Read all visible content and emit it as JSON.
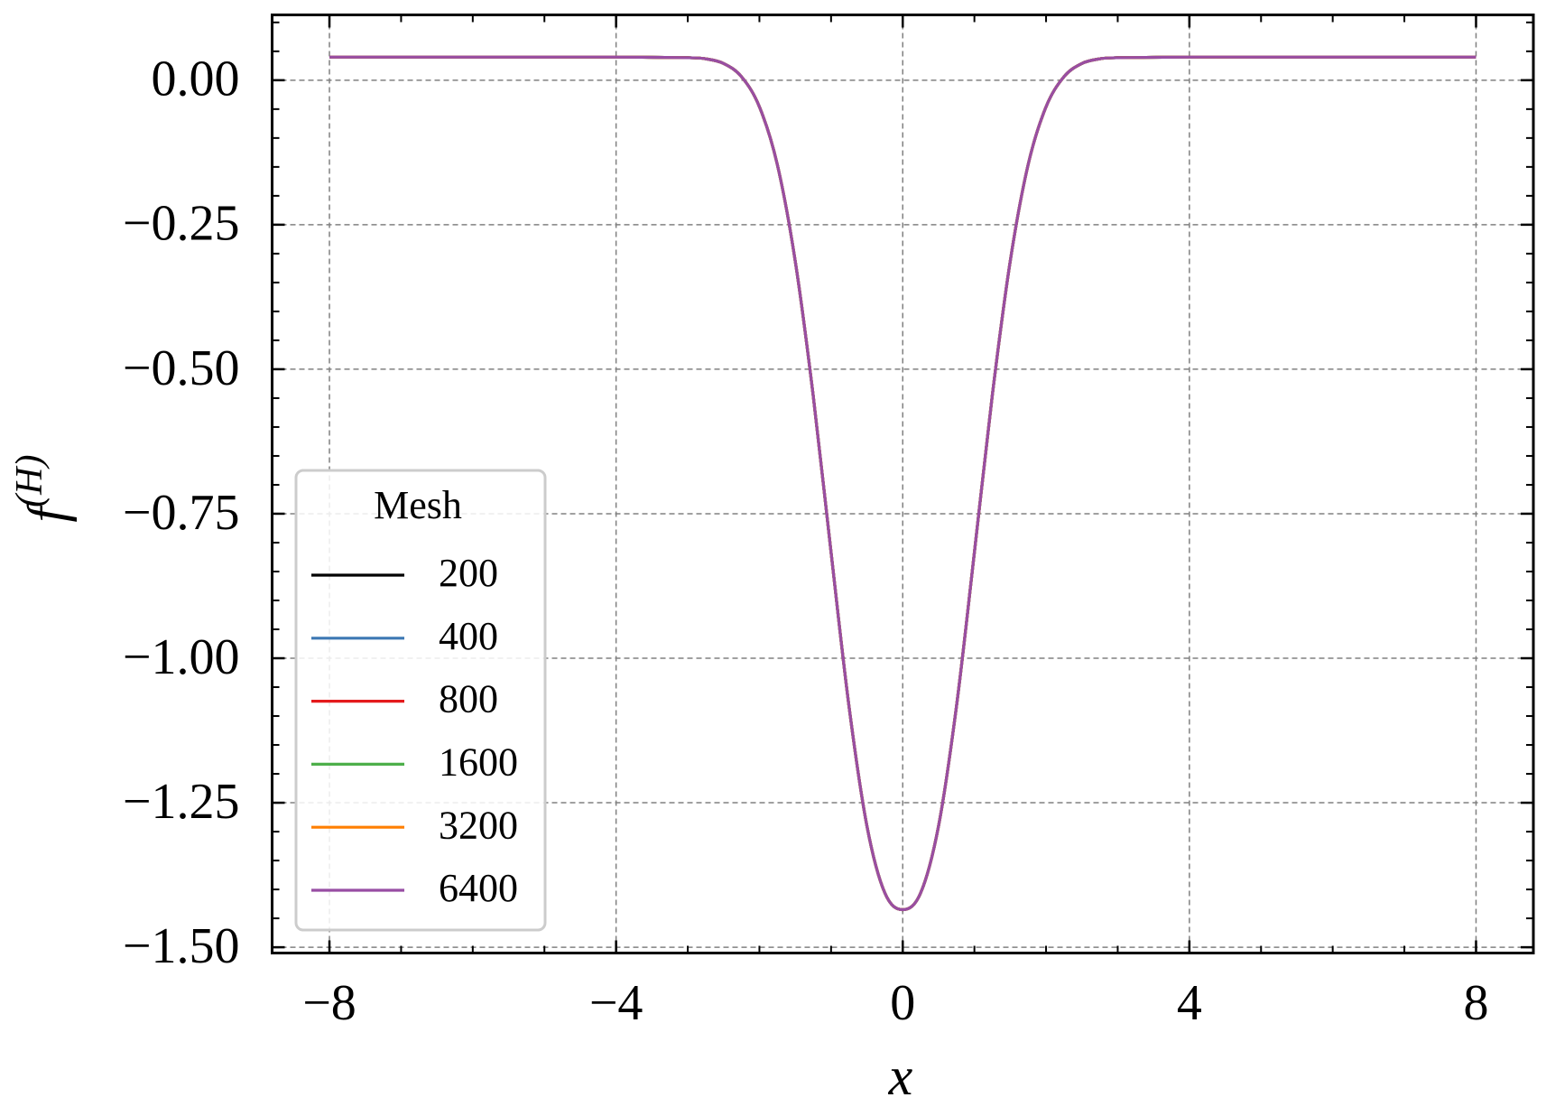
{
  "chart_data": {
    "type": "line",
    "xlabel": "x",
    "ylabel": {
      "base": "f",
      "sup": "(H)"
    },
    "legend_title": "Mesh",
    "legend": "lower left",
    "grid": true,
    "xlim": [
      -8.8,
      8.8
    ],
    "ylim": [
      -1.51,
      0.113
    ],
    "xticks": [
      {
        "value": -8,
        "label": "−8"
      },
      {
        "value": -4,
        "label": "−4"
      },
      0,
      4,
      8
    ],
    "yticks": [
      {
        "value": 0,
        "label": "0.00"
      },
      {
        "value": -0.25,
        "label": "−0.25"
      },
      {
        "value": -0.5,
        "label": "−0.50"
      },
      {
        "value": -0.75,
        "label": "−0.75"
      },
      {
        "value": -1,
        "label": "−1.00"
      },
      {
        "value": -1.25,
        "label": "−1.25"
      },
      {
        "value": -1.5,
        "label": "−1.50"
      }
    ],
    "xminor_step": 1,
    "yminor_step": 0.05,
    "x": [
      -8,
      -7,
      -6,
      -5,
      -4,
      -3,
      -2.75,
      -2.5,
      -2.25,
      -2,
      -1.75,
      -1.5,
      -1.25,
      -1,
      -0.75,
      -0.5,
      -0.25,
      0,
      0.25,
      0.5,
      0.75,
      1,
      1.25,
      1.5,
      1.75,
      2,
      2.25,
      2.5,
      2.75,
      3,
      4,
      5,
      6,
      7,
      8
    ],
    "series": [
      {
        "name": "200",
        "color": "#000000",
        "values": [
          0.04,
          0.04,
          0.04,
          0.04,
          0.04,
          0.039,
          0.037,
          0.029,
          0.006,
          -0.046,
          -0.146,
          -0.313,
          -0.545,
          -0.817,
          -1.083,
          -1.29,
          -1.406,
          -1.435,
          -1.406,
          -1.29,
          -1.083,
          -0.817,
          -0.545,
          -0.313,
          -0.146,
          -0.046,
          0.006,
          0.029,
          0.037,
          0.039,
          0.04,
          0.04,
          0.04,
          0.04,
          0.04
        ]
      },
      {
        "name": "400",
        "color": "#3d78b4",
        "values": [
          0.04,
          0.04,
          0.04,
          0.04,
          0.04,
          0.039,
          0.037,
          0.029,
          0.006,
          -0.046,
          -0.146,
          -0.313,
          -0.545,
          -0.817,
          -1.083,
          -1.29,
          -1.406,
          -1.435,
          -1.406,
          -1.29,
          -1.083,
          -0.817,
          -0.545,
          -0.313,
          -0.146,
          -0.046,
          0.006,
          0.029,
          0.037,
          0.039,
          0.04,
          0.04,
          0.04,
          0.04,
          0.04
        ]
      },
      {
        "name": "800",
        "color": "#e41a1c",
        "values": [
          0.04,
          0.04,
          0.04,
          0.04,
          0.04,
          0.039,
          0.037,
          0.029,
          0.006,
          -0.046,
          -0.146,
          -0.313,
          -0.545,
          -0.817,
          -1.083,
          -1.29,
          -1.406,
          -1.435,
          -1.406,
          -1.29,
          -1.083,
          -0.817,
          -0.545,
          -0.313,
          -0.146,
          -0.046,
          0.006,
          0.029,
          0.037,
          0.039,
          0.04,
          0.04,
          0.04,
          0.04,
          0.04
        ]
      },
      {
        "name": "1600",
        "color": "#4daf4a",
        "values": [
          0.04,
          0.04,
          0.04,
          0.04,
          0.04,
          0.039,
          0.037,
          0.029,
          0.006,
          -0.046,
          -0.146,
          -0.313,
          -0.545,
          -0.817,
          -1.083,
          -1.29,
          -1.406,
          -1.435,
          -1.406,
          -1.29,
          -1.083,
          -0.817,
          -0.545,
          -0.313,
          -0.146,
          -0.046,
          0.006,
          0.029,
          0.037,
          0.039,
          0.04,
          0.04,
          0.04,
          0.04,
          0.04
        ]
      },
      {
        "name": "3200",
        "color": "#ff7f00",
        "values": [
          0.04,
          0.04,
          0.04,
          0.04,
          0.04,
          0.039,
          0.037,
          0.029,
          0.006,
          -0.046,
          -0.146,
          -0.313,
          -0.545,
          -0.817,
          -1.083,
          -1.29,
          -1.406,
          -1.435,
          -1.406,
          -1.29,
          -1.083,
          -0.817,
          -0.545,
          -0.313,
          -0.146,
          -0.046,
          0.006,
          0.029,
          0.037,
          0.039,
          0.04,
          0.04,
          0.04,
          0.04,
          0.04
        ]
      },
      {
        "name": "6400",
        "color": "#984ea3",
        "values": [
          0.04,
          0.04,
          0.04,
          0.04,
          0.04,
          0.039,
          0.037,
          0.029,
          0.006,
          -0.046,
          -0.146,
          -0.313,
          -0.545,
          -0.817,
          -1.083,
          -1.29,
          -1.406,
          -1.435,
          -1.406,
          -1.29,
          -1.083,
          -0.817,
          -0.545,
          -0.313,
          -0.146,
          -0.046,
          0.006,
          0.029,
          0.037,
          0.039,
          0.04,
          0.04,
          0.04,
          0.04,
          0.04
        ]
      }
    ]
  }
}
